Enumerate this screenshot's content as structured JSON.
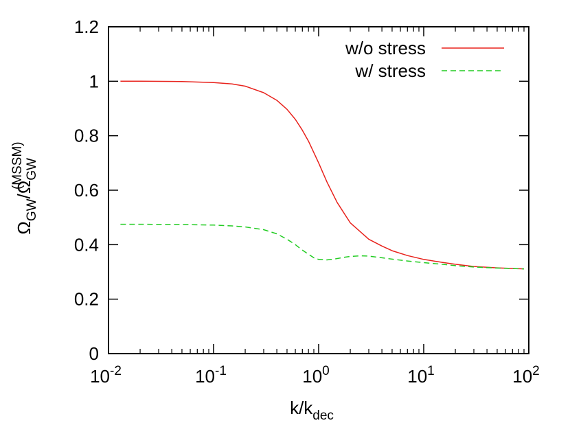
{
  "chart_data": {
    "type": "line",
    "title": "",
    "xscale": "log",
    "xlim": [
      0.01,
      100
    ],
    "ylim": [
      0,
      1.2
    ],
    "grid": false,
    "legend_position": "top-right",
    "x_ticks": [
      {
        "value": 0.01,
        "base": "10",
        "exp": "-2"
      },
      {
        "value": 0.1,
        "base": "10",
        "exp": "-1"
      },
      {
        "value": 1,
        "base": "10",
        "exp": "0"
      },
      {
        "value": 10,
        "base": "10",
        "exp": "1"
      },
      {
        "value": 100,
        "base": "10",
        "exp": "2"
      }
    ],
    "y_ticks": [
      {
        "value": 0,
        "label": "0"
      },
      {
        "value": 0.2,
        "label": "0.2"
      },
      {
        "value": 0.4,
        "label": "0.4"
      },
      {
        "value": 0.6,
        "label": "0.6"
      },
      {
        "value": 0.8,
        "label": "0.8"
      },
      {
        "value": 1.0,
        "label": "1"
      },
      {
        "value": 1.2,
        "label": "1.2"
      }
    ],
    "xlabel": {
      "main": "k/k",
      "sub": "dec"
    },
    "ylabel": {
      "main1": "Ω",
      "sub1": "GW",
      "slash": "/Ω",
      "sub2": "GW",
      "sup2": "(MSSM)"
    },
    "series": [
      {
        "name": "w/o stress",
        "color": "#e8221c",
        "dash": "solid",
        "x": [
          0.013,
          0.02,
          0.05,
          0.1,
          0.15,
          0.2,
          0.3,
          0.4,
          0.5,
          0.6,
          0.7,
          0.8,
          1.0,
          1.2,
          1.5,
          2.0,
          3.0,
          4.0,
          5.0,
          7.0,
          10.0,
          15.0,
          20.0,
          30.0,
          50.0,
          90.0
        ],
        "y": [
          1.0,
          1.0,
          0.999,
          0.995,
          0.99,
          0.982,
          0.958,
          0.93,
          0.897,
          0.86,
          0.82,
          0.78,
          0.7,
          0.63,
          0.555,
          0.48,
          0.42,
          0.395,
          0.378,
          0.36,
          0.346,
          0.335,
          0.328,
          0.32,
          0.315,
          0.311
        ]
      },
      {
        "name": "w/ stress",
        "color": "#22cc22",
        "dash": "dashed",
        "x": [
          0.013,
          0.02,
          0.05,
          0.1,
          0.15,
          0.2,
          0.3,
          0.4,
          0.5,
          0.6,
          0.7,
          0.8,
          0.9,
          1.0,
          1.2,
          1.4,
          1.7,
          2.0,
          2.5,
          3.0,
          4.0,
          5.0,
          7.0,
          10.0,
          15.0,
          20.0,
          30.0,
          50.0,
          90.0
        ],
        "y": [
          0.475,
          0.475,
          0.474,
          0.472,
          0.469,
          0.465,
          0.455,
          0.44,
          0.42,
          0.4,
          0.38,
          0.365,
          0.352,
          0.346,
          0.344,
          0.347,
          0.353,
          0.357,
          0.359,
          0.358,
          0.352,
          0.347,
          0.34,
          0.334,
          0.328,
          0.323,
          0.318,
          0.314,
          0.311
        ]
      }
    ]
  }
}
